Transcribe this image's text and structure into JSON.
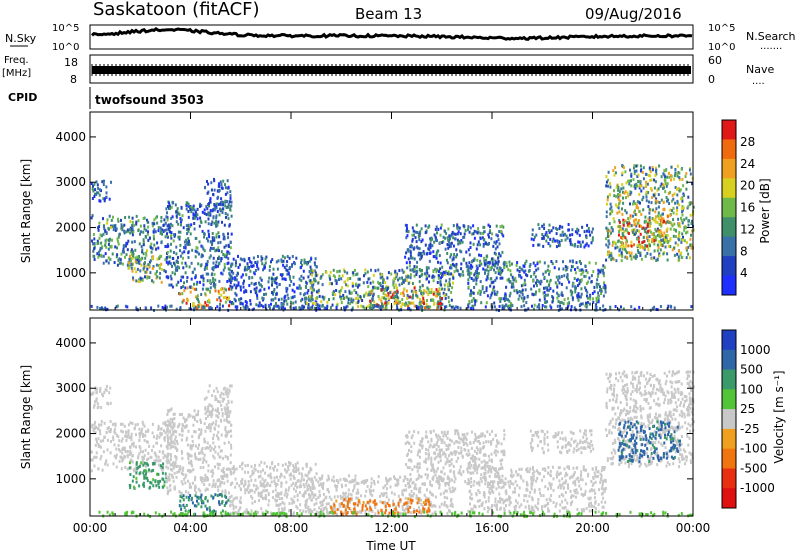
{
  "header": {
    "station": "Saskatoon (fitACF)",
    "beam": "Beam 13",
    "date": "09/Aug/2016"
  },
  "strip_nsky": {
    "left_label": "N.Sky",
    "right_label": "N.Search",
    "right_marker": ".......",
    "ticks": [
      "10^5",
      "10^0"
    ]
  },
  "strip_freq": {
    "left_label_1": "Freq.",
    "left_label_2": "[MHz]",
    "left_ticks": [
      "18",
      "8"
    ],
    "right_label": "Nave",
    "right_marker": "....",
    "right_ticks": [
      "60",
      "0"
    ]
  },
  "strip_cpid": {
    "left_label": "CPID",
    "program": "twofsound 3503"
  },
  "colors": {
    "power_scale": [
      "#1f2fff",
      "#1f40c0",
      "#3a70a8",
      "#3f8f6a",
      "#6fb84a",
      "#d8d020",
      "#f0a020",
      "#f06a10",
      "#e01818"
    ],
    "velocity_scale": [
      "#1f40c0",
      "#2f66a8",
      "#3a9a6a",
      "#52c436",
      "#c8c8c8",
      "#f0a020",
      "#f07410",
      "#e83010",
      "#e01010"
    ]
  },
  "chart_data": [
    {
      "type": "heatmap",
      "title": "",
      "xlabel": "Time UT",
      "ylabel": "Slant Range [km]",
      "x_ticks": [
        "00:00",
        "04:00",
        "08:00",
        "12:00",
        "16:00",
        "20:00",
        "00:00"
      ],
      "xlim_hours": [
        0,
        24
      ],
      "y_ticks": [
        1000,
        2000,
        3000,
        4000
      ],
      "ylim": [
        180,
        4550
      ],
      "colorbar_label": "Power [dB]",
      "colorbar_ticks": [
        "4",
        "8",
        "12",
        "16",
        "20",
        "24",
        "28"
      ],
      "colorbar_range": [
        0,
        30
      ],
      "scatter_regions": [
        {
          "t": [
            0.0,
            3.2
          ],
          "r": [
            1200,
            2300
          ],
          "value": 10
        },
        {
          "t": [
            0.0,
            0.8
          ],
          "r": [
            2600,
            3100
          ],
          "value": 6
        },
        {
          "t": [
            1.5,
            3.0
          ],
          "r": [
            800,
            1400
          ],
          "value": 14
        },
        {
          "t": [
            3.0,
            5.6
          ],
          "r": [
            700,
            2600
          ],
          "value": 8
        },
        {
          "t": [
            4.5,
            5.6
          ],
          "r": [
            2400,
            3100
          ],
          "value": 6
        },
        {
          "t": [
            3.5,
            5.5
          ],
          "r": [
            250,
            700
          ],
          "value": 18
        },
        {
          "t": [
            5.5,
            9.0
          ],
          "r": [
            250,
            1400
          ],
          "value": 7
        },
        {
          "t": [
            8.5,
            14.5
          ],
          "r": [
            250,
            1100
          ],
          "value": 12
        },
        {
          "t": [
            11.0,
            14.0
          ],
          "r": [
            250,
            700
          ],
          "value": 20
        },
        {
          "t": [
            12.5,
            16.5
          ],
          "r": [
            900,
            2100
          ],
          "value": 8
        },
        {
          "t": [
            15.0,
            20.5
          ],
          "r": [
            300,
            1300
          ],
          "value": 9
        },
        {
          "t": [
            17.5,
            20.0
          ],
          "r": [
            1600,
            2100
          ],
          "value": 7
        },
        {
          "t": [
            20.5,
            24.0
          ],
          "r": [
            1300,
            3400
          ],
          "value": 14
        },
        {
          "t": [
            21.0,
            23.0
          ],
          "r": [
            1600,
            2300
          ],
          "value": 22
        },
        {
          "t": [
            0.0,
            24.0
          ],
          "r": [
            200,
            300
          ],
          "value": 6
        }
      ]
    },
    {
      "type": "heatmap",
      "title": "",
      "xlabel": "Time UT",
      "ylabel": "Slant Range [km]",
      "x_ticks": [
        "00:00",
        "04:00",
        "08:00",
        "12:00",
        "16:00",
        "20:00",
        "00:00"
      ],
      "xlim_hours": [
        0,
        24
      ],
      "y_ticks": [
        1000,
        2000,
        3000,
        4000
      ],
      "ylim": [
        180,
        4550
      ],
      "colorbar_label": "Velocity [m s⁻¹]",
      "colorbar_ticks": [
        "1000",
        "500",
        "100",
        "25",
        "-25",
        "-100",
        "-500",
        "-1000"
      ],
      "colorbar_range": [
        -1000,
        1000
      ],
      "scatter_regions": [
        {
          "t": [
            0.0,
            3.2
          ],
          "r": [
            1200,
            2300
          ],
          "value": 0
        },
        {
          "t": [
            0.0,
            0.8
          ],
          "r": [
            2600,
            3100
          ],
          "value": 0
        },
        {
          "t": [
            1.5,
            3.0
          ],
          "r": [
            800,
            1400
          ],
          "value": 150
        },
        {
          "t": [
            3.0,
            5.6
          ],
          "r": [
            700,
            2600
          ],
          "value": 0
        },
        {
          "t": [
            4.5,
            5.6
          ],
          "r": [
            2400,
            3100
          ],
          "value": 0
        },
        {
          "t": [
            3.5,
            5.5
          ],
          "r": [
            250,
            700
          ],
          "value": 300
        },
        {
          "t": [
            5.5,
            9.0
          ],
          "r": [
            250,
            1400
          ],
          "value": 0
        },
        {
          "t": [
            8.5,
            14.5
          ],
          "r": [
            250,
            1100
          ],
          "value": 0
        },
        {
          "t": [
            9.5,
            13.5
          ],
          "r": [
            250,
            600
          ],
          "value": -150
        },
        {
          "t": [
            12.5,
            16.5
          ],
          "r": [
            900,
            2100
          ],
          "value": 0
        },
        {
          "t": [
            15.0,
            20.5
          ],
          "r": [
            300,
            1300
          ],
          "value": 0
        },
        {
          "t": [
            17.5,
            20.0
          ],
          "r": [
            1600,
            2100
          ],
          "value": 0
        },
        {
          "t": [
            20.5,
            24.0
          ],
          "r": [
            1300,
            3400
          ],
          "value": 0
        },
        {
          "t": [
            21.0,
            23.5
          ],
          "r": [
            1400,
            2300
          ],
          "value": 400
        },
        {
          "t": [
            0.0,
            24.0
          ],
          "r": [
            200,
            300
          ],
          "value": 50
        }
      ]
    }
  ]
}
